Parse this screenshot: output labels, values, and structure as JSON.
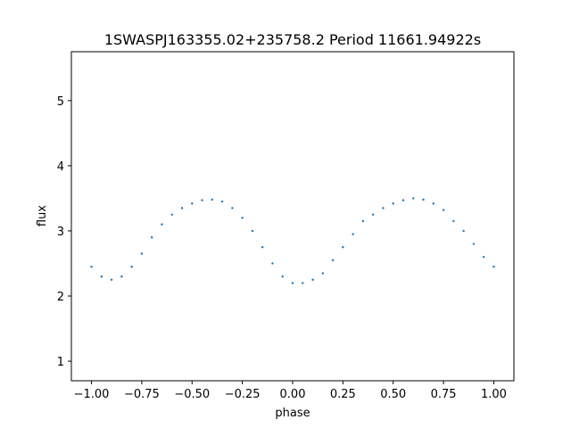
{
  "chart_data": {
    "type": "scatter",
    "title": "1SWASPJ163355.02+235758.2 Period 11661.94922s",
    "xlabel": "phase",
    "ylabel": "flux",
    "xlim": [
      -1.1,
      1.1
    ],
    "ylim": [
      0.7,
      5.75
    ],
    "xticks": [
      -1.0,
      -0.75,
      -0.5,
      -0.25,
      0.0,
      0.25,
      0.5,
      0.75,
      1.0
    ],
    "xtick_labels": [
      "−1.00",
      "−0.75",
      "−0.50",
      "−0.25",
      "0.00",
      "0.25",
      "0.50",
      "0.75",
      "1.00"
    ],
    "yticks": [
      1,
      2,
      3,
      4,
      5
    ],
    "ytick_labels": [
      "1",
      "2",
      "3",
      "4",
      "5"
    ],
    "grid": false,
    "marker_color": "#1f77b4",
    "series": [
      {
        "x": [
          -1.0,
          -0.95,
          -0.9,
          -0.85,
          -0.8,
          -0.75,
          -0.7,
          -0.65,
          -0.6,
          -0.55,
          -0.5,
          -0.45,
          -0.4,
          -0.35,
          -0.3,
          -0.25,
          -0.2,
          -0.15,
          -0.1,
          -0.05,
          0.0,
          0.05,
          0.1,
          0.15,
          0.2,
          0.25,
          0.3,
          0.35,
          0.4,
          0.45,
          0.5,
          0.55,
          0.6,
          0.65,
          0.7,
          0.75,
          0.8,
          0.85,
          0.9,
          0.95,
          1.0
        ],
        "y": [
          2.45,
          2.3,
          2.25,
          2.3,
          2.45,
          2.65,
          2.9,
          3.1,
          3.25,
          3.35,
          3.42,
          3.47,
          3.48,
          3.45,
          3.35,
          3.2,
          3.0,
          2.75,
          2.5,
          2.3,
          2.2,
          2.2,
          2.25,
          2.35,
          2.55,
          2.75,
          2.95,
          3.15,
          3.25,
          3.35,
          3.42,
          3.47,
          3.5,
          3.48,
          3.42,
          3.32,
          3.15,
          3.0,
          2.8,
          2.6,
          2.45
        ]
      }
    ]
  }
}
